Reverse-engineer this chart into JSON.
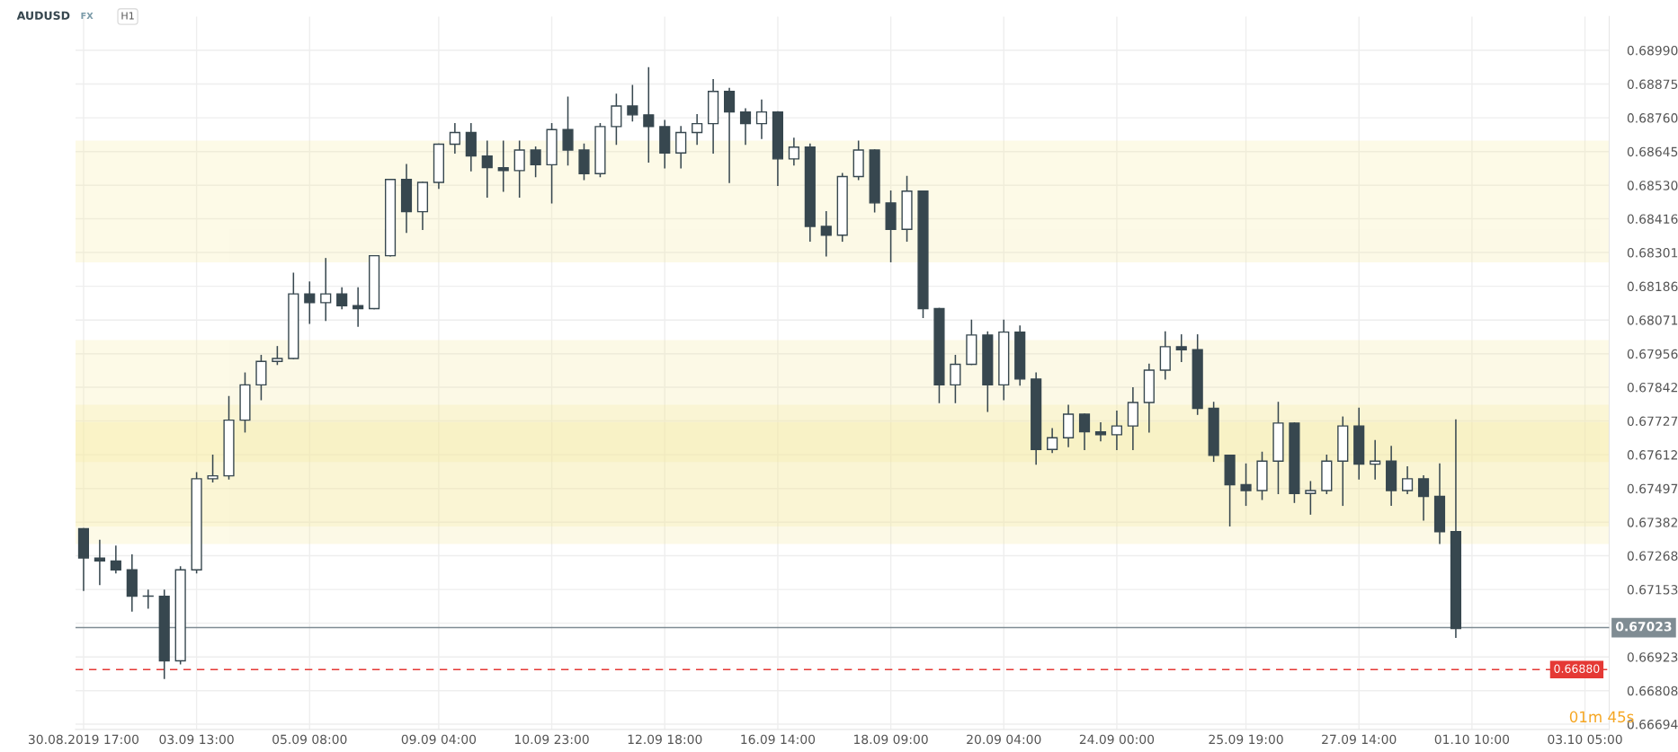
{
  "chart_data": {
    "type": "candlestick",
    "title": "AUDUSD",
    "annotations": [
      "FX",
      "H1",
      "01m 45s"
    ],
    "categories": [
      "30.08.2019 17:00",
      null,
      null,
      null,
      null,
      null,
      null,
      "03.09 13:00",
      null,
      null,
      null,
      null,
      null,
      null,
      "05.09 08:00",
      null,
      null,
      null,
      null,
      null,
      null,
      null,
      "09.09 04:00",
      null,
      null,
      null,
      null,
      null,
      null,
      "10.09 23:00",
      null,
      null,
      null,
      null,
      null,
      null,
      "12.09 18:00",
      null,
      null,
      null,
      null,
      null,
      null,
      "16.09 14:00",
      null,
      null,
      null,
      null,
      null,
      null,
      "18.09 09:00",
      null,
      null,
      null,
      null,
      null,
      null,
      "20.09 04:00",
      null,
      null,
      null,
      null,
      null,
      null,
      "24.09 00:00",
      null,
      null,
      null,
      null,
      null,
      null,
      null,
      "25.09 19:00",
      null,
      null,
      null,
      null,
      null,
      null,
      "27.09 14:00",
      null,
      null,
      null,
      null,
      null,
      null,
      "01.10 10:00",
      null,
      null,
      null,
      null,
      null,
      null,
      "03.10 05:00",
      null
    ],
    "ohlc": [
      [
        0.6736,
        0.6736,
        0.6715,
        0.6726
      ],
      [
        0.6726,
        0.6732,
        0.6717,
        0.6725
      ],
      [
        0.6725,
        0.673,
        0.6721,
        0.6722
      ],
      [
        0.6722,
        0.6727,
        0.6708,
        0.6713
      ],
      [
        0.6713,
        0.6715,
        0.6709,
        0.6713
      ],
      [
        0.6713,
        0.6715,
        0.6685,
        0.6691
      ],
      [
        0.6691,
        0.6723,
        0.669,
        0.6722
      ],
      [
        0.6722,
        0.6755,
        0.6721,
        0.6753
      ],
      [
        0.6753,
        0.6761,
        0.6752,
        0.6754
      ],
      [
        0.6754,
        0.6781,
        0.6753,
        0.6773
      ],
      [
        0.6773,
        0.6789,
        0.6769,
        0.6785
      ],
      [
        0.6785,
        0.6795,
        0.678,
        0.6793
      ],
      [
        0.6793,
        0.6798,
        0.6792,
        0.6794
      ],
      [
        0.6794,
        0.6823,
        0.6794,
        0.6816
      ],
      [
        0.6816,
        0.682,
        0.6806,
        0.6813
      ],
      [
        0.6813,
        0.6828,
        0.6807,
        0.6816
      ],
      [
        0.6816,
        0.6818,
        0.6811,
        0.6812
      ],
      [
        0.6812,
        0.6818,
        0.6805,
        0.6811
      ],
      [
        0.6811,
        0.6829,
        0.6811,
        0.6829
      ],
      [
        0.6829,
        0.6855,
        0.6829,
        0.6855
      ],
      [
        0.6855,
        0.686,
        0.6837,
        0.6844
      ],
      [
        0.6844,
        0.6854,
        0.6838,
        0.6854
      ],
      [
        0.6854,
        0.6867,
        0.6852,
        0.6867
      ],
      [
        0.6867,
        0.6874,
        0.6864,
        0.6871
      ],
      [
        0.6871,
        0.6874,
        0.6858,
        0.6863
      ],
      [
        0.6863,
        0.6868,
        0.6849,
        0.6859
      ],
      [
        0.6859,
        0.6868,
        0.6851,
        0.6858
      ],
      [
        0.6858,
        0.6868,
        0.6849,
        0.6865
      ],
      [
        0.6865,
        0.6866,
        0.6856,
        0.686
      ],
      [
        0.686,
        0.6874,
        0.6847,
        0.6872
      ],
      [
        0.6872,
        0.6883,
        0.686,
        0.6865
      ],
      [
        0.6865,
        0.6867,
        0.6855,
        0.6857
      ],
      [
        0.6857,
        0.6874,
        0.6856,
        0.6873
      ],
      [
        0.6873,
        0.6884,
        0.6867,
        0.688
      ],
      [
        0.688,
        0.6887,
        0.6875,
        0.6877
      ],
      [
        0.6877,
        0.6893,
        0.6861,
        0.6873
      ],
      [
        0.6873,
        0.6875,
        0.6859,
        0.6864
      ],
      [
        0.6864,
        0.6873,
        0.6859,
        0.6871
      ],
      [
        0.6871,
        0.6877,
        0.6867,
        0.6874
      ],
      [
        0.6874,
        0.6889,
        0.6864,
        0.6885
      ],
      [
        0.6885,
        0.6886,
        0.6854,
        0.6878
      ],
      [
        0.6878,
        0.6879,
        0.6867,
        0.6874
      ],
      [
        0.6874,
        0.6882,
        0.6869,
        0.6878
      ],
      [
        0.6878,
        0.6878,
        0.6853,
        0.6862
      ],
      [
        0.6862,
        0.6869,
        0.686,
        0.6866
      ],
      [
        0.6866,
        0.6867,
        0.6834,
        0.6839
      ],
      [
        0.6839,
        0.6844,
        0.6829,
        0.6836
      ],
      [
        0.6836,
        0.6857,
        0.6834,
        0.6856
      ],
      [
        0.6856,
        0.6868,
        0.6855,
        0.6865
      ],
      [
        0.6865,
        0.6865,
        0.6844,
        0.6847
      ],
      [
        0.6847,
        0.6851,
        0.6827,
        0.6838
      ],
      [
        0.6838,
        0.6856,
        0.6834,
        0.6851
      ],
      [
        0.6851,
        0.6851,
        0.6808,
        0.6811
      ],
      [
        0.6811,
        0.6811,
        0.6779,
        0.6785
      ],
      [
        0.6785,
        0.6795,
        0.6779,
        0.6792
      ],
      [
        0.6792,
        0.6807,
        0.6792,
        0.6802
      ],
      [
        0.6802,
        0.6803,
        0.6776,
        0.6785
      ],
      [
        0.6785,
        0.6807,
        0.678,
        0.6803
      ],
      [
        0.6803,
        0.6805,
        0.6785,
        0.6787
      ],
      [
        0.6787,
        0.6789,
        0.6758,
        0.6763
      ],
      [
        0.6763,
        0.677,
        0.6762,
        0.6767
      ],
      [
        0.6767,
        0.6778,
        0.6764,
        0.6775
      ],
      [
        0.6775,
        0.6775,
        0.6763,
        0.6769
      ],
      [
        0.6769,
        0.6772,
        0.6766,
        0.6768
      ],
      [
        0.6768,
        0.6776,
        0.6763,
        0.6771
      ],
      [
        0.6771,
        0.6784,
        0.6763,
        0.6779
      ],
      [
        0.6779,
        0.6792,
        0.6769,
        0.679
      ],
      [
        0.679,
        0.6803,
        0.6787,
        0.6798
      ],
      [
        0.6798,
        0.6802,
        0.6793,
        0.6797
      ],
      [
        0.6797,
        0.6802,
        0.6775,
        0.6777
      ],
      [
        0.6777,
        0.6779,
        0.6759,
        0.6761
      ],
      [
        0.6761,
        0.6761,
        0.6737,
        0.6751
      ],
      [
        0.6751,
        0.6758,
        0.6744,
        0.6749
      ],
      [
        0.6749,
        0.6762,
        0.6746,
        0.6759
      ],
      [
        0.6759,
        0.6779,
        0.6748,
        0.6772
      ],
      [
        0.6772,
        0.6772,
        0.6745,
        0.6748
      ],
      [
        0.6748,
        0.6752,
        0.6741,
        0.6749
      ],
      [
        0.6749,
        0.6761,
        0.6748,
        0.6759
      ],
      [
        0.6759,
        0.6774,
        0.6744,
        0.6771
      ],
      [
        0.6771,
        0.6777,
        0.6753,
        0.6758
      ],
      [
        0.6758,
        0.6766,
        0.6753,
        0.6759
      ],
      [
        0.6759,
        0.6764,
        0.6744,
        0.6749
      ],
      [
        0.6749,
        0.6757,
        0.6748,
        0.6753
      ],
      [
        0.6753,
        0.6754,
        0.6739,
        0.6747
      ],
      [
        0.6747,
        0.6758,
        0.6731,
        0.6735
      ],
      [
        0.6735,
        0.6773,
        0.6699,
        0.6702
      ],
      null,
      null,
      null,
      null,
      null,
      null,
      null,
      null,
      null
    ],
    "color": "#37474f",
    "ylim": [
      0.66676,
      0.69105
    ],
    "yticks": [
      {
        "value": 0.6899,
        "label": "0.68990"
      },
      {
        "value": 0.68875,
        "label": "0.68875"
      },
      {
        "value": 0.6876,
        "label": "0.68760"
      },
      {
        "value": 0.68645,
        "label": "0.68645"
      },
      {
        "value": 0.6853,
        "label": "0.68530"
      },
      {
        "value": 0.68416,
        "label": "0.68416"
      },
      {
        "value": 0.68301,
        "label": "0.68301"
      },
      {
        "value": 0.68186,
        "label": "0.68186"
      },
      {
        "value": 0.68071,
        "label": "0.68071"
      },
      {
        "value": 0.67956,
        "label": "0.67956"
      },
      {
        "value": 0.67842,
        "label": "0.67842"
      },
      {
        "value": 0.67727,
        "label": "0.67727"
      },
      {
        "value": 0.67612,
        "label": "0.67612"
      },
      {
        "value": 0.67497,
        "label": "0.67497"
      },
      {
        "value": 0.67382,
        "label": "0.67382"
      },
      {
        "value": 0.67268,
        "label": "0.67268"
      },
      {
        "value": 0.67153,
        "label": "0.67153"
      },
      {
        "value": 0.67038,
        "label": null
      },
      {
        "value": 0.66923,
        "label": "0.66923"
      },
      {
        "value": 0.66808,
        "label": "0.66808"
      },
      {
        "value": 0.66694,
        "label": "0.66694"
      }
    ],
    "ref_lines": [
      {
        "axis": "y",
        "value": 0.67023,
        "label": "0.67023",
        "color": "#7f8c93",
        "line_style": "solid"
      },
      {
        "axis": "y",
        "value": 0.6688,
        "label": "0.66880",
        "color": "#e53935",
        "line_style": "dashed"
      }
    ],
    "bands": [
      {
        "axis": "y",
        "from": 0.6827,
        "to": 0.6868,
        "color": "#f5eaa0"
      },
      {
        "axis": "y",
        "from": 0.6759,
        "to": 0.68,
        "color": "#f5eaa0"
      },
      {
        "axis": "y",
        "from": 0.6737,
        "to": 0.6778,
        "color": "#f5eaa0"
      },
      {
        "axis": "y",
        "from": 0.6731,
        "to": 0.6772,
        "color": "#f5eaa0"
      }
    ],
    "grid": true,
    "legend": false
  }
}
